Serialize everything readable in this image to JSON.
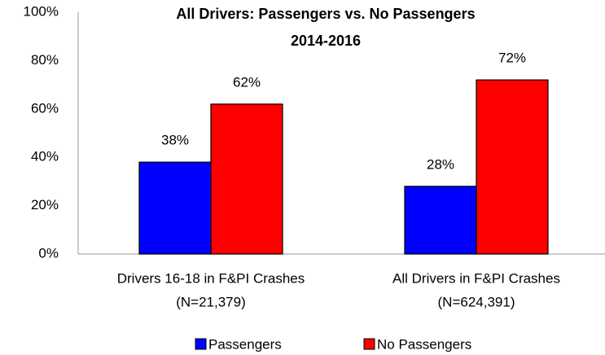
{
  "chart_data": {
    "type": "bar",
    "title": [
      "All Drivers:  Passengers vs. No Passengers",
      "2014-2016"
    ],
    "categories": [
      [
        "Drivers 16-18 in F&PI Crashes",
        "(N=21,379)"
      ],
      [
        "All Drivers in F&PI Crashes",
        "(N=624,391)"
      ]
    ],
    "series": [
      {
        "name": "Passengers",
        "color": "#0000ff",
        "values": [
          38,
          28
        ],
        "value_labels": [
          "38%",
          "28%"
        ]
      },
      {
        "name": "No Passengers",
        "color": "#ff0000",
        "values": [
          62,
          72
        ],
        "value_labels": [
          "62%",
          "72%"
        ]
      }
    ],
    "ylim": [
      0,
      100
    ],
    "yticks": [
      {
        "value": 0,
        "label": "0%"
      },
      {
        "value": 20,
        "label": "20%"
      },
      {
        "value": 40,
        "label": "40%"
      },
      {
        "value": 60,
        "label": "60%"
      },
      {
        "value": 80,
        "label": "80%"
      },
      {
        "value": 100,
        "label": "100%"
      }
    ],
    "grid": false,
    "legend": "bottom"
  }
}
